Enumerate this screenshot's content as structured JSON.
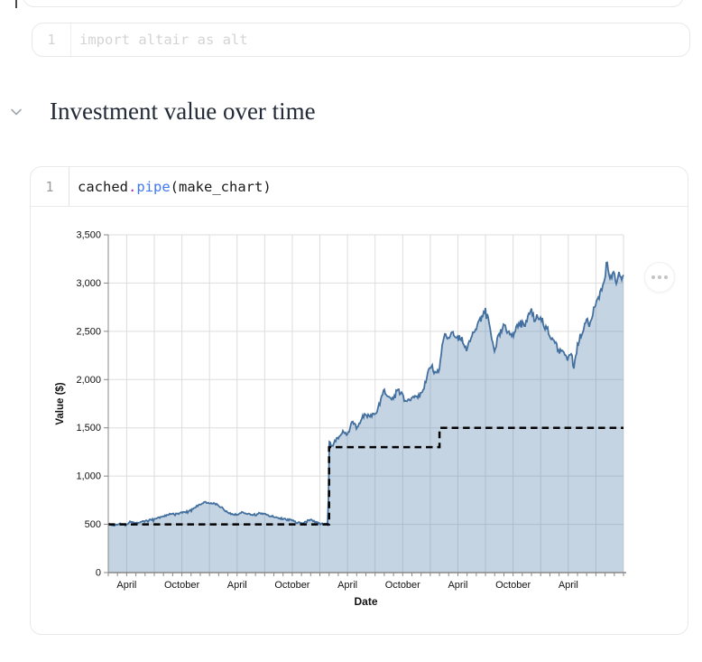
{
  "notebook": {
    "top_tick": "cell-anchor",
    "import_cell": {
      "line_number": "1",
      "code": "import altair as alt"
    },
    "heading": "Investment value over time",
    "chart_cell": {
      "line_number": "1",
      "code_tokens": [
        {
          "text": "cached",
          "color": "#1a1a1a"
        },
        {
          "text": ".",
          "color": "#a626a4"
        },
        {
          "text": "pipe",
          "color": "#4078f2"
        },
        {
          "text": "(make_chart)",
          "color": "#1a1a1a"
        }
      ],
      "menu_icon": "ellipsis-icon"
    }
  },
  "chart_data": {
    "type": "area",
    "xlabel": "Date",
    "ylabel": "Value ($)",
    "ylim": [
      0,
      3500
    ],
    "x_range_months": [
      0,
      56
    ],
    "grid": true,
    "y_ticks": [
      0,
      500,
      1000,
      1500,
      2000,
      2500,
      3000,
      3500
    ],
    "y_tick_labels": [
      "0",
      "500",
      "1,000",
      "1,500",
      "2,000",
      "2,500",
      "3,000",
      "3,500"
    ],
    "x_tick_months": [
      2,
      8,
      14,
      20,
      26,
      32,
      38,
      44,
      50
    ],
    "x_tick_labels": [
      "April",
      "October",
      "April",
      "October",
      "April",
      "October",
      "April",
      "October",
      "April"
    ],
    "colors": {
      "line": "#44709f",
      "fill": "rgba(76,120,168,0.32)",
      "invested": "#000000",
      "grid": "#dddddd",
      "axis": "#888888",
      "label": "#111111"
    },
    "noise": {
      "seed": 1337,
      "amplitude_pct": 0.013,
      "flat_amplitude": 9,
      "spike_chance": 0.045
    },
    "series": [
      {
        "name": "value",
        "type": "area",
        "points": [
          [
            0,
            505
          ],
          [
            0.5,
            485
          ],
          [
            1,
            500
          ],
          [
            1.5,
            510
          ],
          [
            2,
            500
          ],
          [
            2.5,
            535
          ],
          [
            3,
            515
          ],
          [
            3.5,
            525
          ],
          [
            4,
            530
          ],
          [
            4.5,
            545
          ],
          [
            5,
            555
          ],
          [
            5.5,
            570
          ],
          [
            6,
            580
          ],
          [
            6.5,
            600
          ],
          [
            7,
            612
          ],
          [
            7.5,
            605
          ],
          [
            8,
            622
          ],
          [
            8.5,
            630
          ],
          [
            9,
            645
          ],
          [
            9.5,
            680
          ],
          [
            10,
            705
          ],
          [
            10.5,
            730
          ],
          [
            11,
            712
          ],
          [
            11.5,
            720
          ],
          [
            12,
            695
          ],
          [
            12.5,
            660
          ],
          [
            13,
            625
          ],
          [
            13.5,
            605
          ],
          [
            14,
            600
          ],
          [
            14.5,
            625
          ],
          [
            15,
            618
          ],
          [
            15.5,
            598
          ],
          [
            16,
            605
          ],
          [
            16.5,
            615
          ],
          [
            17,
            608
          ],
          [
            17.5,
            592
          ],
          [
            18,
            578
          ],
          [
            18.5,
            565
          ],
          [
            19,
            558
          ],
          [
            19.5,
            548
          ],
          [
            20,
            542
          ],
          [
            20.5,
            520
          ],
          [
            21,
            512
          ],
          [
            21.5,
            535
          ],
          [
            22,
            548
          ],
          [
            22.5,
            522
          ],
          [
            23,
            508
          ],
          [
            23.5,
            498
          ],
          [
            23.9,
            505
          ],
          [
            24,
            1370
          ],
          [
            24.3,
            1305
          ],
          [
            24.6,
            1360
          ],
          [
            25,
            1400
          ],
          [
            25.5,
            1455
          ],
          [
            26,
            1420
          ],
          [
            26.5,
            1555
          ],
          [
            27,
            1505
          ],
          [
            27.5,
            1590
          ],
          [
            28,
            1655
          ],
          [
            28.5,
            1620
          ],
          [
            29,
            1640
          ],
          [
            29.5,
            1750
          ],
          [
            30,
            1890
          ],
          [
            30.4,
            1830
          ],
          [
            30.8,
            1785
          ],
          [
            31.1,
            1845
          ],
          [
            31.4,
            1900
          ],
          [
            31.7,
            1865
          ],
          [
            32,
            1835
          ],
          [
            32.3,
            1760
          ],
          [
            32.7,
            1780
          ],
          [
            33,
            1805
          ],
          [
            33.5,
            1825
          ],
          [
            34,
            1855
          ],
          [
            34.4,
            1950
          ],
          [
            34.8,
            2100
          ],
          [
            35.1,
            2150
          ],
          [
            35.4,
            2080
          ],
          [
            35.7,
            2055
          ],
          [
            36,
            2110
          ],
          [
            36.3,
            2340
          ],
          [
            36.6,
            2450
          ],
          [
            37,
            2430
          ],
          [
            37.4,
            2490
          ],
          [
            37.7,
            2440
          ],
          [
            38,
            2480
          ],
          [
            38.3,
            2430
          ],
          [
            38.6,
            2390
          ],
          [
            39,
            2310
          ],
          [
            39.4,
            2420
          ],
          [
            39.7,
            2500
          ],
          [
            40,
            2520
          ],
          [
            40.3,
            2590
          ],
          [
            40.6,
            2640
          ],
          [
            41,
            2735
          ],
          [
            41.3,
            2640
          ],
          [
            41.6,
            2460
          ],
          [
            42,
            2290
          ],
          [
            42.3,
            2420
          ],
          [
            42.6,
            2480
          ],
          [
            43,
            2555
          ],
          [
            43.3,
            2520
          ],
          [
            43.6,
            2490
          ],
          [
            44,
            2455
          ],
          [
            44.3,
            2520
          ],
          [
            44.6,
            2560
          ],
          [
            45,
            2615
          ],
          [
            45.3,
            2570
          ],
          [
            45.6,
            2640
          ],
          [
            46,
            2715
          ],
          [
            46.3,
            2620
          ],
          [
            46.6,
            2650
          ],
          [
            47,
            2655
          ],
          [
            47.3,
            2600
          ],
          [
            47.6,
            2570
          ],
          [
            48,
            2465
          ],
          [
            48.3,
            2430
          ],
          [
            48.6,
            2400
          ],
          [
            49,
            2265
          ],
          [
            49.3,
            2320
          ],
          [
            49.6,
            2270
          ],
          [
            50,
            2210
          ],
          [
            50.3,
            2290
          ],
          [
            50.6,
            2120
          ],
          [
            50.8,
            2220
          ],
          [
            51,
            2360
          ],
          [
            51.3,
            2450
          ],
          [
            51.6,
            2520
          ],
          [
            52,
            2615
          ],
          [
            52.3,
            2555
          ],
          [
            52.6,
            2670
          ],
          [
            53,
            2790
          ],
          [
            53.3,
            2860
          ],
          [
            53.6,
            2930
          ],
          [
            54,
            3060
          ],
          [
            54.15,
            3265
          ],
          [
            54.4,
            3120
          ],
          [
            54.6,
            3055
          ],
          [
            54.8,
            3110
          ],
          [
            55,
            3105
          ],
          [
            55.2,
            2995
          ],
          [
            55.5,
            3085
          ],
          [
            55.8,
            3020
          ],
          [
            56,
            3045
          ]
        ]
      },
      {
        "name": "invested",
        "type": "step-dashed",
        "points": [
          [
            0,
            500
          ],
          [
            24,
            500
          ],
          [
            24,
            1300
          ],
          [
            36,
            1300
          ],
          [
            36,
            1500
          ],
          [
            56,
            1500
          ]
        ]
      }
    ]
  }
}
